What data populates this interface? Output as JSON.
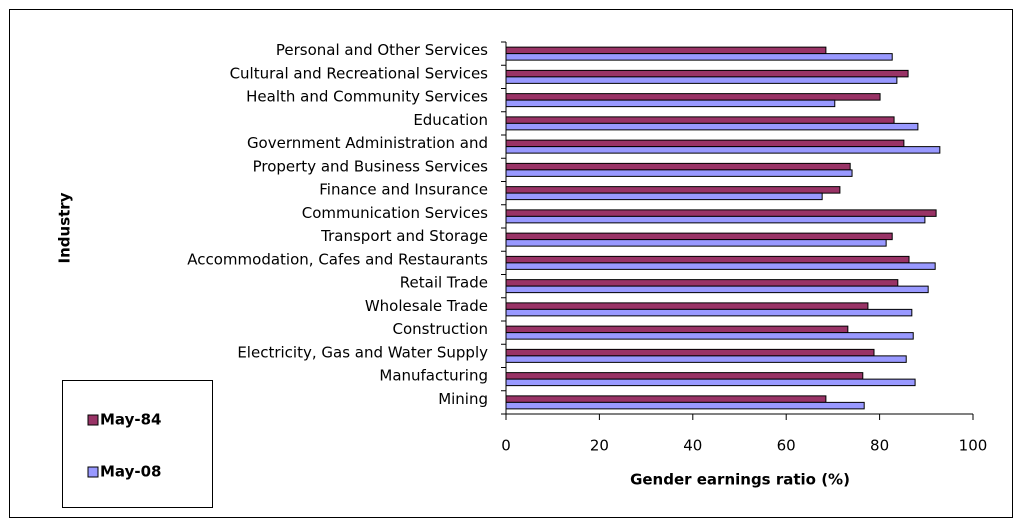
{
  "chart_data": {
    "type": "hbar",
    "xlabel": "Gender earnings ratio (%)",
    "ylabel": "Industry",
    "categories": [
      "Personal and Other Services",
      "Cultural and Recreational Services",
      "Health and Community Services",
      "Education",
      "Government Administration and",
      "Property and Business Services",
      "Finance and Insurance",
      "Communication Services",
      "Transport and Storage",
      "Accommodation, Cafes and Restaurants",
      "Retail Trade",
      "Wholesale Trade",
      "Construction",
      "Electricity, Gas and Water Supply",
      "Manufacturing",
      "Mining"
    ],
    "series": [
      {
        "name": "May-84",
        "color": "#993366",
        "values": [
          68.5,
          86.1,
          80.1,
          83.1,
          85.2,
          73.7,
          71.5,
          92.1,
          82.7,
          86.3,
          83.9,
          77.5,
          73.2,
          78.8,
          76.4,
          68.5
        ]
      },
      {
        "name": "May-08",
        "color": "#9999ff",
        "values": [
          82.7,
          83.7,
          70.4,
          88.2,
          92.9,
          74.1,
          67.7,
          89.7,
          81.4,
          91.9,
          90.4,
          86.9,
          87.2,
          85.7,
          87.6,
          76.7
        ]
      }
    ],
    "xlim": [
      0,
      100
    ],
    "xticks": [
      0,
      20,
      40,
      60,
      80,
      100
    ],
    "legend": "lower-left"
  }
}
